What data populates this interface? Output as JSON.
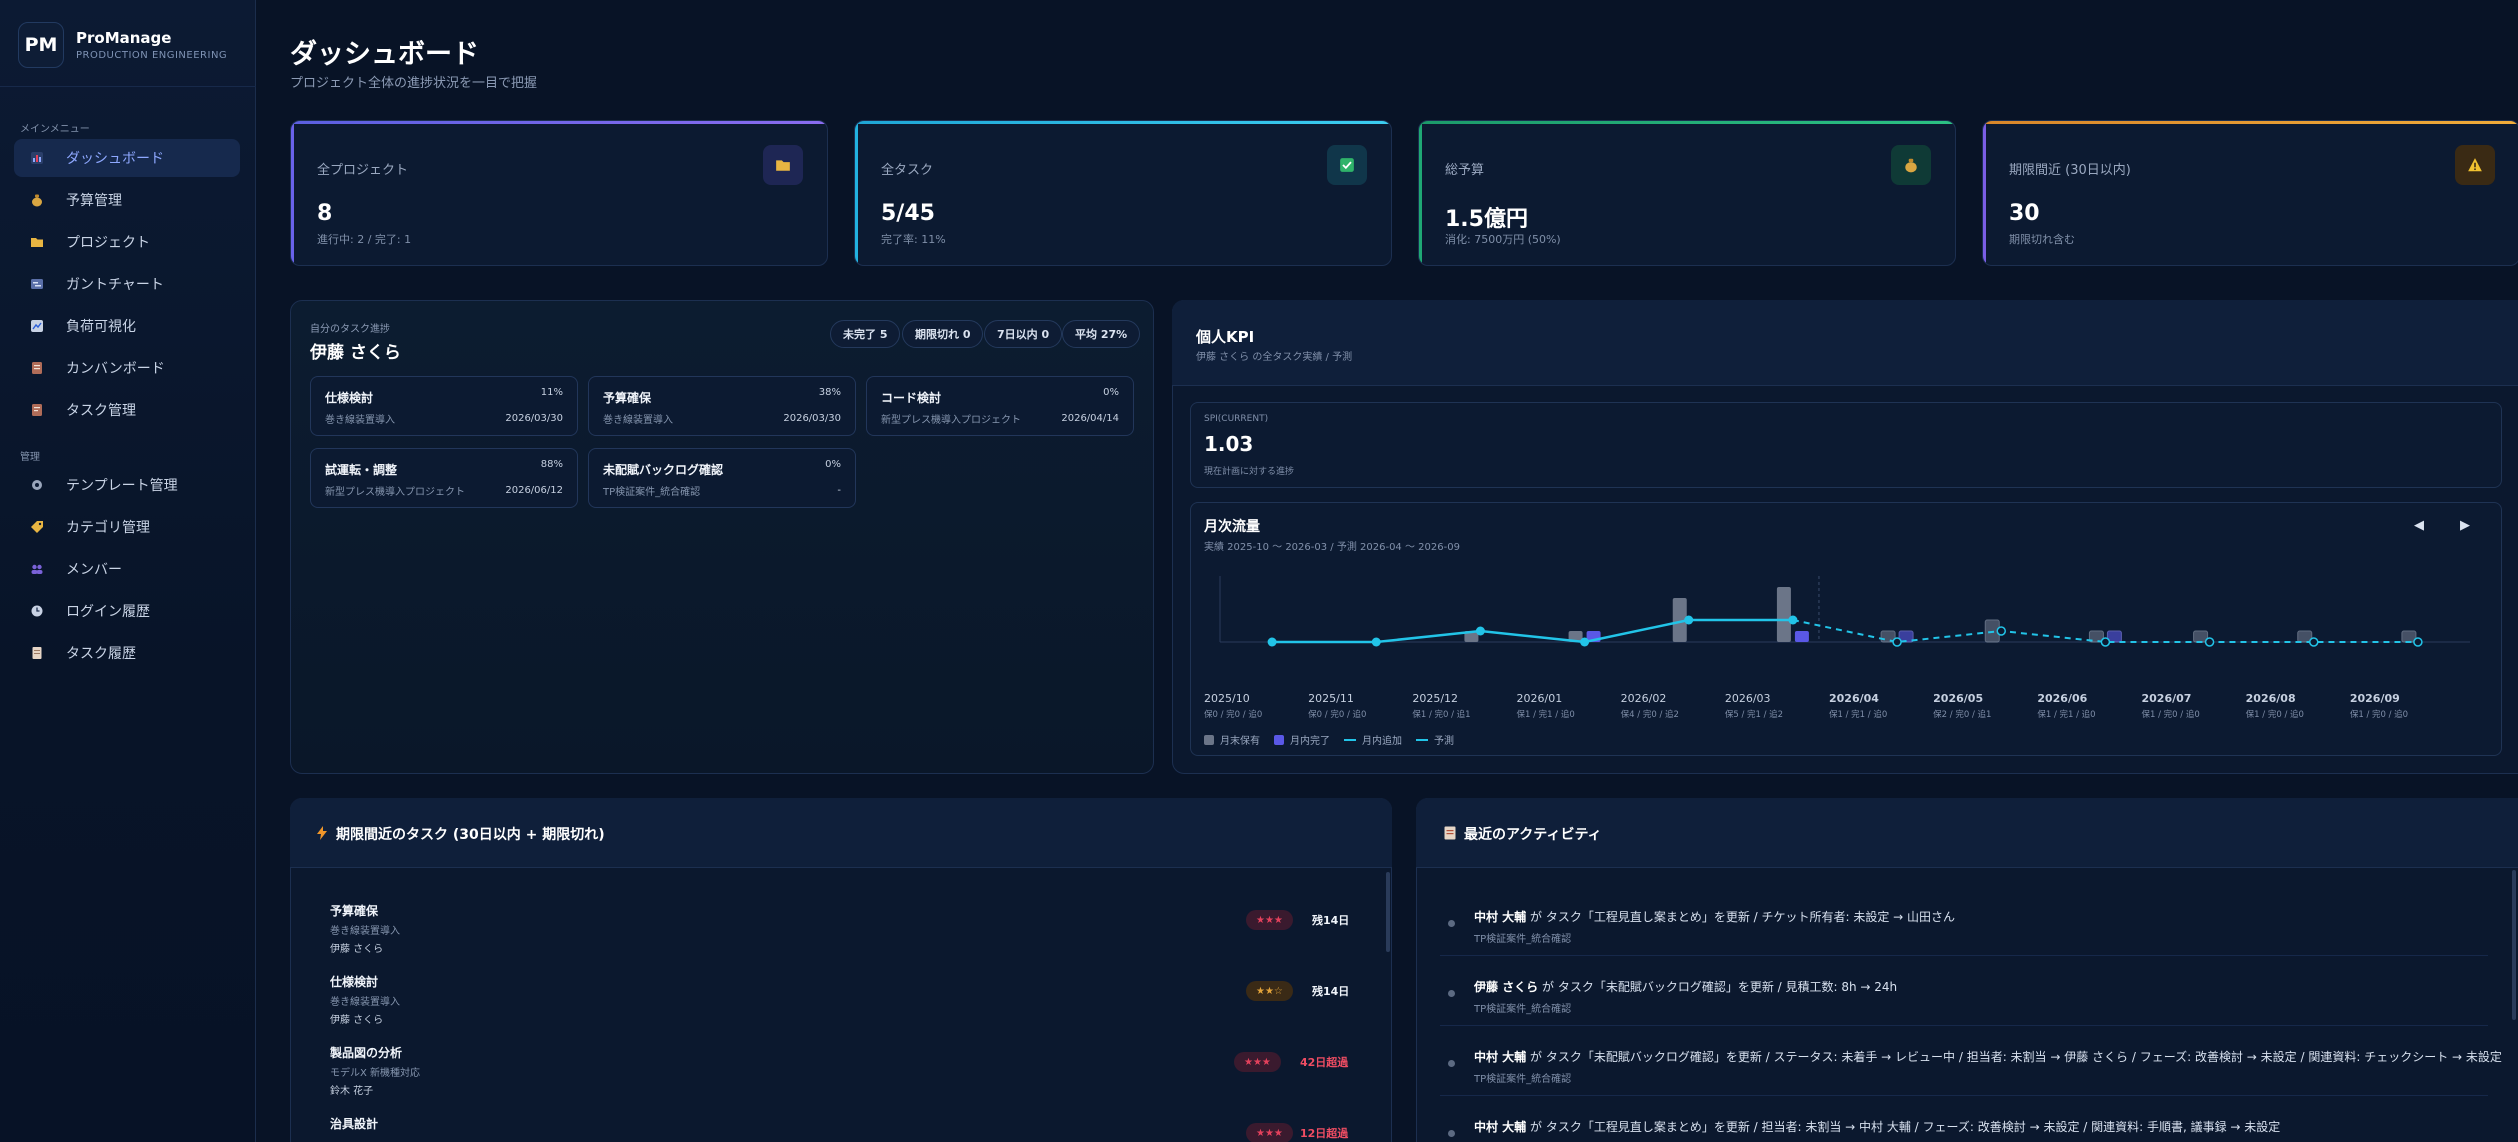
{
  "brand": {
    "logo": "PM",
    "name": "ProManage",
    "subtitle": "PRODUCTION ENGINEERING"
  },
  "sidebar": {
    "section_main": "メインメニュー",
    "section_admin": "管理",
    "main_items": [
      {
        "label": "ダッシュボード",
        "icon": "chart-icon",
        "active": true
      },
      {
        "label": "予算管理",
        "icon": "money-bag-icon"
      },
      {
        "label": "プロジェクト",
        "icon": "folder-icon"
      },
      {
        "label": "ガントチャート",
        "icon": "gantt-icon"
      },
      {
        "label": "負荷可視化",
        "icon": "load-chart-icon"
      },
      {
        "label": "カンバンボード",
        "icon": "kanban-icon"
      },
      {
        "label": "タスク管理",
        "icon": "task-icon"
      }
    ],
    "admin_items": [
      {
        "label": "テンプレート管理",
        "icon": "gear-icon"
      },
      {
        "label": "カテゴリ管理",
        "icon": "tag-icon"
      },
      {
        "label": "メンバー",
        "icon": "members-icon"
      },
      {
        "label": "ログイン履歴",
        "icon": "clock-icon"
      },
      {
        "label": "タスク履歴",
        "icon": "document-icon"
      }
    ]
  },
  "header": {
    "title": "ダッシュボード",
    "subtitle": "プロジェクト全体の進捗状況を一目で把握"
  },
  "stats": [
    {
      "label": "全プロジェクト",
      "value": "8",
      "detail": "進行中: 2 / 完了: 1",
      "icon": "folder-icon",
      "color": "#7c6cf2"
    },
    {
      "label": "全タスク",
      "value": "5/45",
      "detail": "完了率: 11%",
      "icon": "check-icon",
      "color": "#2ab8e0"
    },
    {
      "label": "総予算",
      "value": "1.5億円",
      "detail": "消化: 7500万円 (50%)",
      "icon": "money-bag-icon",
      "color": "#22b07a"
    },
    {
      "label": "期限間近 (30日以内)",
      "value": "30",
      "detail": "期限切れ含む",
      "icon": "warning-icon",
      "color": "#e89a2a"
    }
  ],
  "my_tasks": {
    "caption": "自分のタスク進捗",
    "user": "伊藤 さくら",
    "chips": [
      "未完了 5",
      "期限切れ 0",
      "7日以内 0",
      "平均 27%"
    ],
    "cards": [
      {
        "title": "仕様検討",
        "project": "巻き線装置導入",
        "pct": "11%",
        "date": "2026/03/30"
      },
      {
        "title": "予算確保",
        "project": "巻き線装置導入",
        "pct": "38%",
        "date": "2026/03/30"
      },
      {
        "title": "コード検討",
        "project": "新型プレス機導入プロジェクト",
        "pct": "0%",
        "date": "2026/04/14"
      },
      {
        "title": "試運転・調整",
        "project": "新型プレス機導入プロジェクト",
        "pct": "88%",
        "date": "2026/06/12"
      },
      {
        "title": "未配賦バックログ確認",
        "project": "TP検証案件_統合確認",
        "pct": "0%",
        "date": "-"
      }
    ]
  },
  "kpi": {
    "title": "個人KPI",
    "subtitle": "伊藤 さくら の全タスク実績 / 予測",
    "spi_label": "SPI(CURRENT)",
    "spi_value": "1.03",
    "spi_desc": "現在計画に対する進捗",
    "flow_title": "月次流量",
    "flow_sub": "実績 2025-10 〜 2026-03 / 予測 2026-04 〜 2026-09",
    "prev": "◀",
    "next": "▶",
    "legend": [
      "月末保有",
      "月内完了",
      "月内追加",
      "予測"
    ]
  },
  "chart_data": {
    "type": "bar",
    "categories": [
      "2025/10",
      "2025/11",
      "2025/12",
      "2026/01",
      "2026/02",
      "2026/03",
      "2026/04",
      "2026/05",
      "2026/06",
      "2026/07",
      "2026/08",
      "2026/09"
    ],
    "sublabels": [
      "保0 / 完0 / 追0",
      "保0 / 完0 / 追0",
      "保1 / 完0 / 追1",
      "保1 / 完1 / 追0",
      "保4 / 完0 / 追2",
      "保5 / 完1 / 追2",
      "保1 / 完1 / 追0",
      "保2 / 完0 / 追1",
      "保1 / 完1 / 追0",
      "保1 / 完0 / 追0",
      "保1 / 完0 / 追0",
      "保1 / 完0 / 追0"
    ],
    "actual_months": 6,
    "series": [
      {
        "name": "月末保有",
        "values": [
          0,
          0,
          1,
          1,
          4,
          5,
          1,
          2,
          1,
          1,
          1,
          1
        ],
        "color": "#6b7588"
      },
      {
        "name": "月内完了",
        "values": [
          0,
          0,
          0,
          1,
          0,
          1,
          1,
          0,
          1,
          0,
          0,
          0
        ],
        "color": "#5a58e6"
      },
      {
        "name": "月内追加",
        "values": [
          0,
          0,
          1,
          0,
          2,
          2,
          0,
          1,
          0,
          0,
          0,
          0
        ],
        "color": "#22c4e8"
      }
    ],
    "ylim": [
      0,
      6
    ]
  },
  "deadlines": {
    "title": "期限間近のタスク (30日以内 + 期限切れ)",
    "items": [
      {
        "title": "予算確保",
        "project": "巻き線装置導入",
        "user": "伊藤 さくら",
        "stars": "★★★",
        "star_color": "#e4415c",
        "remain": "残14日",
        "remain_color": "#f0f4fa"
      },
      {
        "title": "仕様検討",
        "project": "巻き線装置導入",
        "user": "伊藤 さくら",
        "stars": "★★☆",
        "star_color": "#e2a33a",
        "remain": "残14日",
        "remain_color": "#f0f4fa"
      },
      {
        "title": "製品図の分析",
        "project": "モデルX 新機種対応",
        "user": "鈴木 花子",
        "stars": "★★★",
        "star_color": "#e4415c",
        "remain": "42日超過",
        "remain_color": "#ef4d63"
      },
      {
        "title": "治具設計",
        "project": "",
        "user": "",
        "stars": "★★★",
        "star_color": "#e4415c",
        "remain": "12日超過",
        "remain_color": "#ef4d63"
      }
    ]
  },
  "activity": {
    "title": "最近のアクティビティ",
    "items": [
      {
        "user": "中村 大輔",
        "text": " が タスク「工程見直し案まとめ」を更新 / チケット所有者: 未設定 → 山田さん",
        "project": "TP検証案件_統合確認"
      },
      {
        "user": "伊藤 さくら",
        "text": " が タスク「未配賦バックログ確認」を更新 / 見積工数: 8h → 24h",
        "project": "TP検証案件_統合確認"
      },
      {
        "user": "中村 大輔",
        "text": " が タスク「未配賦バックログ確認」を更新 / ステータス: 未着手 → レビュー中 / 担当者: 未割当 → 伊藤 さくら / フェーズ: 改善検討 → 未設定 / 関連資料: チェックシート → 未設定",
        "project": "TP検証案件_統合確認"
      },
      {
        "user": "中村 大輔",
        "text": " が タスク「工程見直し案まとめ」を更新 / 担当者: 未割当 → 中村 大輔 / フェーズ: 改善検討 → 未設定 / 関連資料: 手順書, 議事録 → 未設定",
        "project": ""
      }
    ]
  }
}
